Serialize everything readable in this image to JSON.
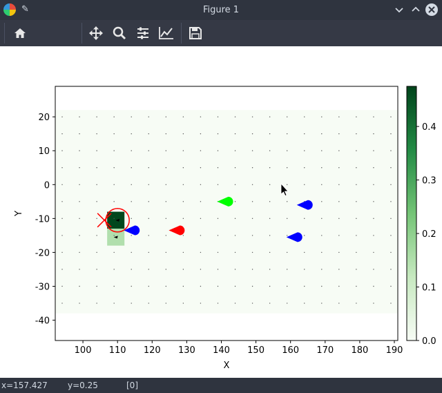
{
  "window": {
    "title": "Figure 1",
    "minimize_icon": "chevron-down-icon",
    "maximize_icon": "chevron-up-icon",
    "close_icon": "close-icon"
  },
  "toolbar": {
    "buttons": [
      "home-icon",
      "pan-icon",
      "zoom-icon",
      "configure-subplots-icon",
      "edit-axes-icon",
      "save-icon"
    ]
  },
  "status": {
    "x_text": "x=157.427",
    "y_text": "y=0.25",
    "value_text": "[0]"
  },
  "chart_data": {
    "type": "heatmap",
    "xlabel": "X",
    "ylabel": "Y",
    "xlim": [
      92,
      191
    ],
    "ylim": [
      -46,
      29
    ],
    "xticks": [
      "100",
      "110",
      "120",
      "130",
      "140",
      "150",
      "160",
      "170",
      "180",
      "190"
    ],
    "yticks": [
      "20",
      "10",
      "0",
      "-10",
      "-20",
      "-30",
      "-40"
    ],
    "grid_extent": {
      "x": [
        92,
        191
      ],
      "y": [
        -38,
        22
      ]
    },
    "grid_points": {
      "x_start": 94,
      "x_end": 190,
      "x_step": 5,
      "y_start": 20,
      "y_end": -36,
      "y_step": -5
    },
    "cells": [
      {
        "x0": 107,
        "x1": 112,
        "y0": -13,
        "y1": -8,
        "value": 0.47
      },
      {
        "x0": 107,
        "x1": 112,
        "y0": -18,
        "y1": -13,
        "value": 0.15
      }
    ],
    "colorbar": {
      "min": 0.0,
      "max": 0.475,
      "ticks": [
        "0.0",
        "0.1",
        "0.2",
        "0.3",
        "0.4"
      ],
      "cmap": [
        "#f7fcf5",
        "#c7e9c0",
        "#74c476",
        "#238b45",
        "#00441b"
      ]
    },
    "agents": [
      {
        "x": 142,
        "y": -5,
        "color": "#00ff00",
        "heading": "left"
      },
      {
        "x": 128,
        "y": -13.5,
        "color": "#ff0000",
        "heading": "left"
      },
      {
        "x": 115,
        "y": -13.5,
        "color": "#0000ff",
        "heading": "left"
      },
      {
        "x": 165,
        "y": -6,
        "color": "#0000ff",
        "heading": "left"
      },
      {
        "x": 162,
        "y": -15.5,
        "color": "#0000ff",
        "heading": "left"
      }
    ],
    "target": {
      "x": 109,
      "y": -10.5,
      "color": "#ff0000"
    },
    "x_marker": {
      "x": 106,
      "y": -10.5,
      "color": "#ff0000"
    },
    "small_markers": [
      {
        "x": 110,
        "y": -10.5
      },
      {
        "x": 109.5,
        "y": -15.5
      }
    ]
  }
}
